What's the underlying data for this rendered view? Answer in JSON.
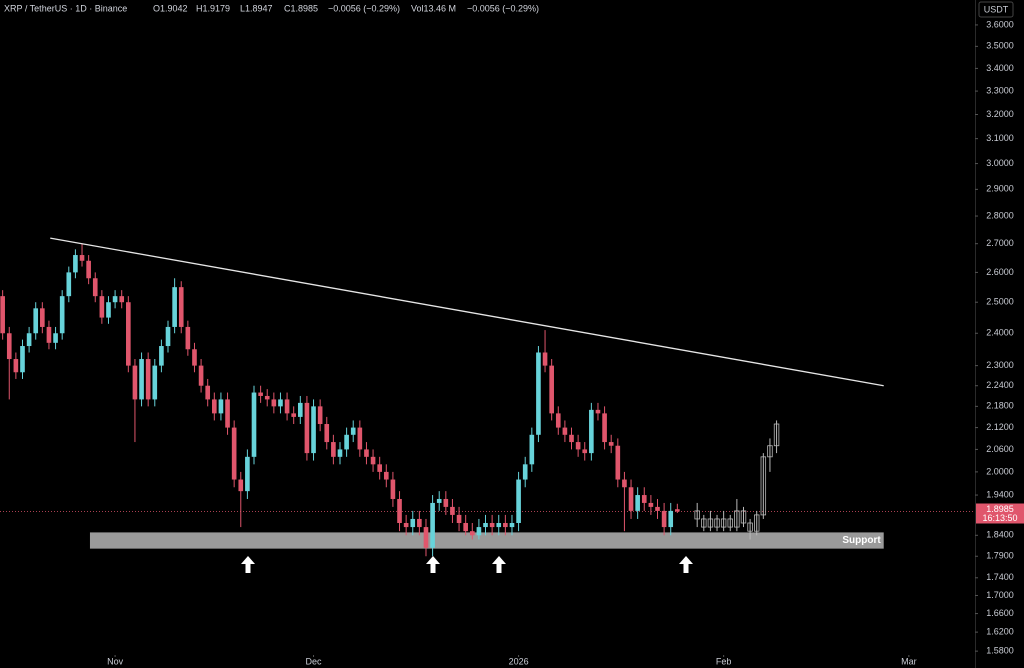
{
  "chart_data": {
    "type": "candlestick",
    "log_scale": true,
    "grid": false,
    "header": {
      "symbol": "XRP / TetherUS · 1D · Binance",
      "ohlc": [
        "O1.9042",
        "H1.9179",
        "L1.8947",
        "C1.8985"
      ],
      "change": "−0.0056 (−0.29%)",
      "volume": "Vol13.46 M",
      "volume_change": "−0.0056 (−0.29%)"
    },
    "currency": "USDT",
    "countdown": "16:13:50",
    "ylim": [
      1.572,
      3.72
    ],
    "yticks": [
      {
        "value": 3.6,
        "label": "3.6000"
      },
      {
        "value": 3.5,
        "label": "3.5000"
      },
      {
        "value": 3.4,
        "label": "3.4000"
      },
      {
        "value": 3.3,
        "label": "3.3000"
      },
      {
        "value": 3.2,
        "label": "3.2000"
      },
      {
        "value": 3.1,
        "label": "3.1000"
      },
      {
        "value": 3.0,
        "label": "3.0000"
      },
      {
        "value": 2.9,
        "label": "2.9000"
      },
      {
        "value": 2.8,
        "label": "2.8000"
      },
      {
        "value": 2.7,
        "label": "2.7000"
      },
      {
        "value": 2.6,
        "label": "2.6000"
      },
      {
        "value": 2.5,
        "label": "2.5000"
      },
      {
        "value": 2.4,
        "label": "2.4000"
      },
      {
        "value": 2.3,
        "label": "2.3000"
      },
      {
        "value": 2.24,
        "label": "2.2400"
      },
      {
        "value": 2.18,
        "label": "2.1800"
      },
      {
        "value": 2.12,
        "label": "2.1200"
      },
      {
        "value": 2.06,
        "label": "2.0600"
      },
      {
        "value": 2.0,
        "label": "2.0000"
      },
      {
        "value": 1.94,
        "label": "1.9400"
      },
      {
        "value": 1.84,
        "label": "1.8400"
      },
      {
        "value": 1.79,
        "label": "1.7900"
      },
      {
        "value": 1.74,
        "label": "1.7400"
      },
      {
        "value": 1.7,
        "label": "1.7000"
      },
      {
        "value": 1.66,
        "label": "1.6600"
      },
      {
        "value": 1.62,
        "label": "1.6200"
      },
      {
        "value": 1.58,
        "label": "1.5800"
      }
    ],
    "xlim": [
      -17.4,
      130
    ],
    "xticks": [
      {
        "value": 0,
        "label": "Nov"
      },
      {
        "value": 30,
        "label": "Dec"
      },
      {
        "value": 61,
        "label": "2026"
      },
      {
        "value": 92,
        "label": "Feb"
      },
      {
        "value": 120,
        "label": "Mar"
      }
    ],
    "up_color": "#67d3da",
    "down_color": "#e0566c",
    "candles": {
      "x": [
        -17,
        -16,
        -15,
        -14,
        -13,
        -12,
        -11,
        -10,
        -9,
        -8,
        -7,
        -6,
        -5,
        -4,
        -3,
        -2,
        -1,
        0,
        1,
        2,
        3,
        4,
        5,
        6,
        7,
        8,
        9,
        10,
        11,
        12,
        13,
        14,
        15,
        16,
        17,
        18,
        19,
        20,
        21,
        22,
        23,
        24,
        25,
        26,
        27,
        28,
        29,
        30,
        31,
        32,
        33,
        34,
        35,
        36,
        37,
        38,
        39,
        40,
        41,
        42,
        43,
        44,
        45,
        46,
        47,
        48,
        49,
        50,
        51,
        52,
        53,
        54,
        55,
        56,
        57,
        58,
        59,
        60,
        61,
        62,
        63,
        64,
        65,
        66,
        67,
        68,
        69,
        70,
        71,
        72,
        73,
        74,
        75,
        76,
        77,
        78,
        79,
        80,
        81,
        82,
        83,
        84,
        85
      ],
      "open": [
        2.52,
        2.4,
        2.32,
        2.28,
        2.36,
        2.4,
        2.48,
        2.42,
        2.37,
        2.4,
        2.52,
        2.6,
        2.66,
        2.64,
        2.58,
        2.52,
        2.45,
        2.5,
        2.52,
        2.5,
        2.3,
        2.2,
        2.32,
        2.2,
        2.3,
        2.36,
        2.42,
        2.55,
        2.42,
        2.35,
        2.3,
        2.24,
        2.2,
        2.16,
        2.2,
        2.12,
        1.98,
        1.95,
        2.04,
        2.22,
        2.21,
        2.2,
        2.18,
        2.2,
        2.16,
        2.15,
        2.19,
        2.05,
        2.18,
        2.13,
        2.08,
        2.04,
        2.06,
        2.1,
        2.12,
        2.06,
        2.04,
        2.02,
        2.0,
        1.98,
        1.93,
        1.87,
        1.86,
        1.88,
        1.86,
        1.81,
        1.92,
        1.93,
        1.91,
        1.89,
        1.87,
        1.85,
        1.84,
        1.86,
        1.87,
        1.86,
        1.87,
        1.86,
        1.87,
        1.98,
        2.02,
        2.1,
        2.34,
        2.3,
        2.16,
        2.12,
        2.1,
        2.08,
        2.06,
        2.05,
        2.17,
        2.16,
        2.08,
        2.07,
        1.98,
        1.96,
        1.9,
        1.94,
        1.92,
        1.91,
        1.9,
        1.86,
        1.9042
      ],
      "high": [
        2.54,
        2.42,
        2.34,
        2.38,
        2.42,
        2.5,
        2.5,
        2.44,
        2.42,
        2.54,
        2.62,
        2.68,
        2.7,
        2.66,
        2.6,
        2.54,
        2.52,
        2.54,
        2.54,
        2.52,
        2.32,
        2.34,
        2.34,
        2.32,
        2.38,
        2.44,
        2.58,
        2.57,
        2.44,
        2.37,
        2.32,
        2.26,
        2.22,
        2.22,
        2.22,
        2.14,
        2.0,
        2.06,
        2.24,
        2.24,
        2.23,
        2.22,
        2.22,
        2.22,
        2.18,
        2.21,
        2.21,
        2.2,
        2.2,
        2.15,
        2.1,
        2.08,
        2.12,
        2.14,
        2.14,
        2.08,
        2.06,
        2.04,
        2.02,
        2.0,
        1.95,
        1.89,
        1.9,
        1.9,
        1.88,
        1.94,
        1.95,
        1.95,
        1.93,
        1.91,
        1.89,
        1.87,
        1.88,
        1.89,
        1.89,
        1.89,
        1.89,
        1.89,
        2.0,
        2.04,
        2.12,
        2.36,
        2.41,
        2.32,
        2.18,
        2.14,
        2.12,
        2.1,
        2.08,
        2.19,
        2.19,
        2.18,
        2.1,
        2.09,
        2.0,
        1.98,
        1.96,
        1.96,
        1.94,
        1.93,
        1.92,
        1.92,
        1.9179
      ],
      "low": [
        2.38,
        2.2,
        2.26,
        2.26,
        2.34,
        2.38,
        2.4,
        2.35,
        2.35,
        2.38,
        2.5,
        2.58,
        2.62,
        2.56,
        2.5,
        2.43,
        2.43,
        2.48,
        2.48,
        2.28,
        2.08,
        2.18,
        2.18,
        2.18,
        2.28,
        2.34,
        2.4,
        2.4,
        2.33,
        2.28,
        2.22,
        2.18,
        2.14,
        2.14,
        2.1,
        1.96,
        1.86,
        1.93,
        2.02,
        2.19,
        2.18,
        2.16,
        2.16,
        2.14,
        2.13,
        2.13,
        2.03,
        2.03,
        2.11,
        2.06,
        2.02,
        2.02,
        2.04,
        2.08,
        2.04,
        2.02,
        2.0,
        1.98,
        1.96,
        1.91,
        1.85,
        1.84,
        1.84,
        1.84,
        1.79,
        1.79,
        1.9,
        1.89,
        1.87,
        1.85,
        1.84,
        1.83,
        1.83,
        1.84,
        1.84,
        1.84,
        1.84,
        1.84,
        1.85,
        1.96,
        2.0,
        2.08,
        2.28,
        2.14,
        2.1,
        2.08,
        2.06,
        2.04,
        2.03,
        2.03,
        2.14,
        2.06,
        2.05,
        1.96,
        1.85,
        1.88,
        1.88,
        1.9,
        1.89,
        1.88,
        1.84,
        1.84,
        1.8947
      ],
      "close": [
        2.4,
        2.32,
        2.28,
        2.36,
        2.4,
        2.48,
        2.42,
        2.37,
        2.4,
        2.52,
        2.6,
        2.66,
        2.64,
        2.58,
        2.52,
        2.45,
        2.5,
        2.52,
        2.5,
        2.3,
        2.2,
        2.32,
        2.2,
        2.3,
        2.36,
        2.42,
        2.55,
        2.42,
        2.35,
        2.3,
        2.24,
        2.2,
        2.16,
        2.2,
        2.12,
        1.98,
        1.95,
        2.04,
        2.22,
        2.21,
        2.2,
        2.18,
        2.2,
        2.16,
        2.15,
        2.19,
        2.05,
        2.18,
        2.13,
        2.08,
        2.04,
        2.06,
        2.1,
        2.12,
        2.06,
        2.04,
        2.02,
        2.0,
        1.98,
        1.93,
        1.87,
        1.86,
        1.88,
        1.86,
        1.81,
        1.92,
        1.93,
        1.91,
        1.89,
        1.87,
        1.85,
        1.84,
        1.86,
        1.87,
        1.86,
        1.87,
        1.86,
        1.87,
        1.98,
        2.02,
        2.1,
        2.34,
        2.3,
        2.16,
        2.12,
        2.1,
        2.08,
        2.06,
        2.05,
        2.17,
        2.16,
        2.08,
        2.07,
        1.98,
        1.96,
        1.9,
        1.94,
        1.92,
        1.91,
        1.9,
        1.86,
        1.9,
        1.8985
      ]
    },
    "projection": {
      "color": "#b8b8b8",
      "x": [
        88,
        89,
        90,
        91,
        92,
        93,
        94,
        95,
        96,
        97,
        98,
        99,
        100
      ],
      "open": [
        1.9,
        1.88,
        1.86,
        1.88,
        1.86,
        1.88,
        1.86,
        1.9,
        1.87,
        1.85,
        1.89,
        2.04,
        2.07
      ],
      "high": [
        1.92,
        1.89,
        1.9,
        1.89,
        1.9,
        1.89,
        1.93,
        1.91,
        1.88,
        1.9,
        2.05,
        2.09,
        2.14
      ],
      "low": [
        1.86,
        1.85,
        1.85,
        1.85,
        1.85,
        1.85,
        1.85,
        1.86,
        1.83,
        1.84,
        1.88,
        2.0,
        2.05
      ],
      "close": [
        1.88,
        1.86,
        1.88,
        1.86,
        1.88,
        1.86,
        1.9,
        1.87,
        1.85,
        1.89,
        2.04,
        2.07,
        2.13
      ]
    },
    "trendline": {
      "color": "#e6e6e6",
      "x": [
        -9.8,
        116.2
      ],
      "y": [
        2.72,
        2.24
      ]
    },
    "support": {
      "label": "Support",
      "color": "#9a9a9a",
      "x": [
        -3.8,
        116.2
      ],
      "y": [
        1.808,
        1.847
      ]
    },
    "last_price_color": "#e0566c"
  }
}
